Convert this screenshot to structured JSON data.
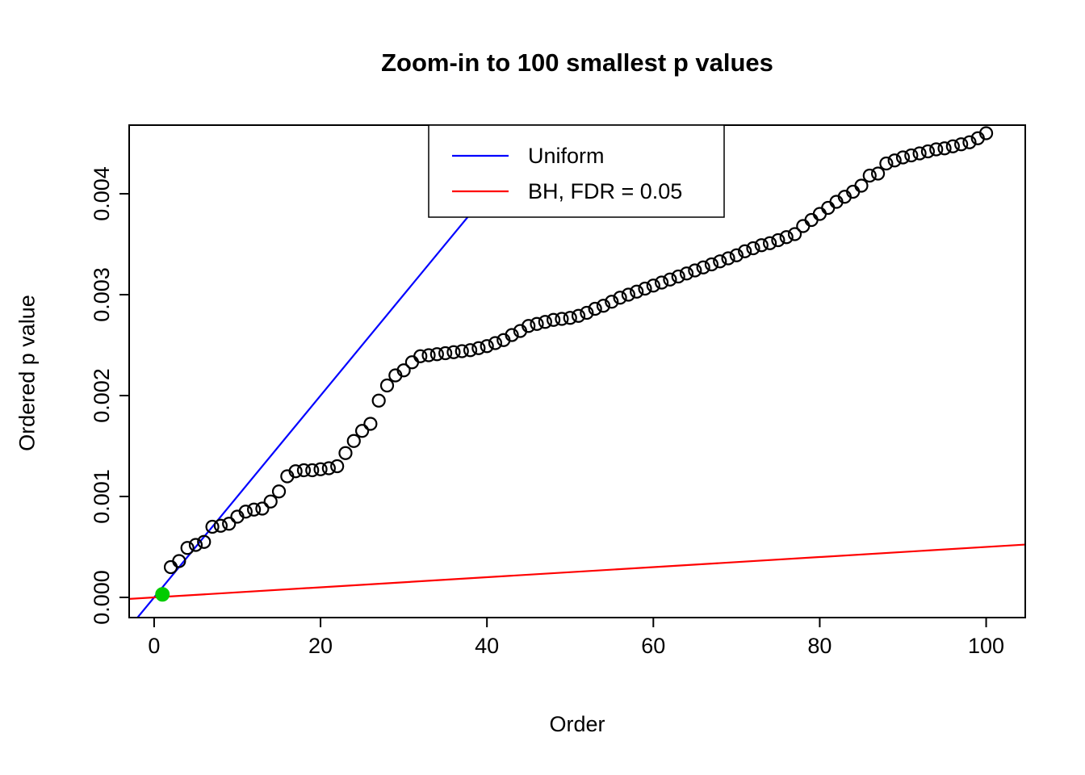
{
  "chart_data": {
    "type": "scatter",
    "title": "Zoom-in to 100 smallest p values",
    "xlabel": "Order",
    "ylabel": "Ordered p value",
    "xlim": [
      -3.0,
      104.7
    ],
    "ylim": [
      -0.0002,
      0.00468
    ],
    "grid": false,
    "x_ticks": [
      0,
      20,
      40,
      60,
      80,
      100
    ],
    "x_tick_labels": [
      "0",
      "20",
      "40",
      "60",
      "80",
      "100"
    ],
    "y_ticks": [
      0,
      0.001,
      0.002,
      0.003,
      0.004
    ],
    "y_tick_labels": [
      "0.000",
      "0.001",
      "0.002",
      "0.003",
      "0.004"
    ],
    "legend": {
      "position": "top",
      "entries": [
        {
          "label": "Uniform",
          "color": "#0000ff"
        },
        {
          "label": "BH, FDR = 0.05",
          "color": "#ff0000"
        }
      ]
    },
    "lines": [
      {
        "name": "uniform",
        "color": "#0000ff",
        "slope": 0.0001,
        "intercept": 0
      },
      {
        "name": "bh-fdr-0.05",
        "color": "#ff0000",
        "slope": 5e-06,
        "intercept": 0
      }
    ],
    "points": {
      "marker": "open-circle",
      "color": "#000000",
      "x_is_order_1_to_100": true,
      "y": [
        3e-05,
        0.0003,
        0.00036,
        0.00049,
        0.00052,
        0.00055,
        0.0007,
        0.00071,
        0.00073,
        0.0008,
        0.00085,
        0.00087,
        0.00088,
        0.00095,
        0.00105,
        0.0012,
        0.00125,
        0.00126,
        0.00126,
        0.00127,
        0.00128,
        0.0013,
        0.00143,
        0.00155,
        0.00165,
        0.00172,
        0.00195,
        0.0021,
        0.0022,
        0.00225,
        0.00233,
        0.00239,
        0.0024,
        0.00241,
        0.00242,
        0.00243,
        0.00244,
        0.00245,
        0.00247,
        0.00249,
        0.00252,
        0.00255,
        0.0026,
        0.00264,
        0.00269,
        0.00271,
        0.00273,
        0.00275,
        0.00276,
        0.00277,
        0.00279,
        0.00282,
        0.00286,
        0.00289,
        0.00293,
        0.00297,
        0.003,
        0.00303,
        0.00306,
        0.00309,
        0.00312,
        0.00315,
        0.00318,
        0.00321,
        0.00324,
        0.00327,
        0.0033,
        0.00333,
        0.00336,
        0.00339,
        0.00343,
        0.00346,
        0.00349,
        0.00351,
        0.00354,
        0.00357,
        0.0036,
        0.00368,
        0.00374,
        0.0038,
        0.00386,
        0.00392,
        0.00397,
        0.00402,
        0.00408,
        0.00418,
        0.0042,
        0.0043,
        0.00433,
        0.00436,
        0.00438,
        0.0044,
        0.00442,
        0.00444,
        0.00445,
        0.00447,
        0.00449,
        0.00451,
        0.00455,
        0.0046
      ]
    },
    "highlight_point": {
      "x": 1,
      "y": 3e-05,
      "color": "#00cc00",
      "marker": "filled-circle"
    }
  }
}
